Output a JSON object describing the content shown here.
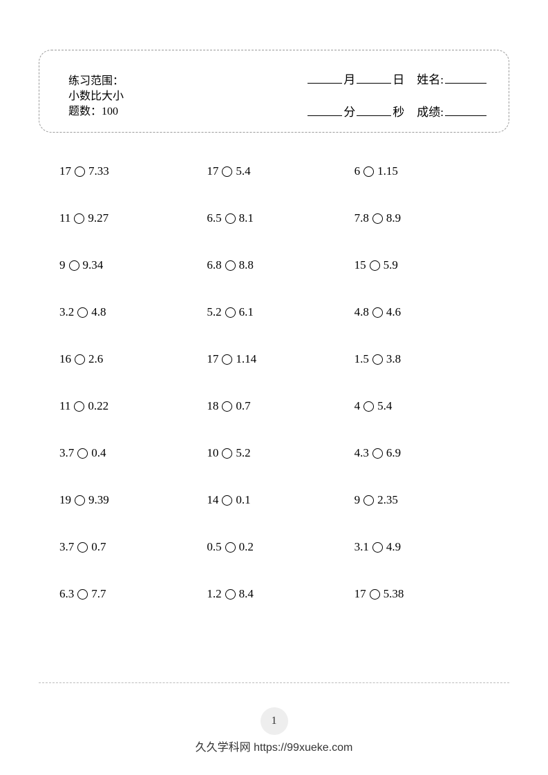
{
  "header": {
    "practice_label": "练习范围：",
    "practice_value": "小数比大小",
    "count_label": "题数：",
    "count_value": "100",
    "month": "月",
    "day": "日",
    "name_label": "姓名:",
    "minute": "分",
    "second": "秒",
    "score_label": "成绩:"
  },
  "problems": [
    [
      {
        "l": "17",
        "r": "7.33"
      },
      {
        "l": "17",
        "r": "5.4"
      },
      {
        "l": "6",
        "r": "1.15"
      }
    ],
    [
      {
        "l": "11",
        "r": "9.27"
      },
      {
        "l": "6.5",
        "r": "8.1"
      },
      {
        "l": "7.8",
        "r": "8.9"
      }
    ],
    [
      {
        "l": "9",
        "r": "9.34"
      },
      {
        "l": "6.8",
        "r": "8.8"
      },
      {
        "l": "15",
        "r": "5.9"
      }
    ],
    [
      {
        "l": "3.2",
        "r": "4.8"
      },
      {
        "l": "5.2",
        "r": "6.1"
      },
      {
        "l": "4.8",
        "r": "4.6"
      }
    ],
    [
      {
        "l": "16",
        "r": "2.6"
      },
      {
        "l": "17",
        "r": "1.14"
      },
      {
        "l": "1.5",
        "r": "3.8"
      }
    ],
    [
      {
        "l": "11",
        "r": "0.22"
      },
      {
        "l": "18",
        "r": "0.7"
      },
      {
        "l": "4",
        "r": "5.4"
      }
    ],
    [
      {
        "l": "3.7",
        "r": "0.4"
      },
      {
        "l": "10",
        "r": "5.2"
      },
      {
        "l": "4.3",
        "r": "6.9"
      }
    ],
    [
      {
        "l": "19",
        "r": "9.39"
      },
      {
        "l": "14",
        "r": "0.1"
      },
      {
        "l": "9",
        "r": "2.35"
      }
    ],
    [
      {
        "l": "3.7",
        "r": "0.7"
      },
      {
        "l": "0.5",
        "r": "0.2"
      },
      {
        "l": "3.1",
        "r": "4.9"
      }
    ],
    [
      {
        "l": "6.3",
        "r": "7.7"
      },
      {
        "l": "1.2",
        "r": "8.4"
      },
      {
        "l": "17",
        "r": "5.38"
      }
    ]
  ],
  "page_number": "1",
  "footer": "久久学科网 https://99xueke.com",
  "colors": {
    "background": "#ffffff",
    "text": "#000000",
    "dash_border": "#999999",
    "divider": "#bbbbbb",
    "page_bg": "#eeeeee"
  }
}
